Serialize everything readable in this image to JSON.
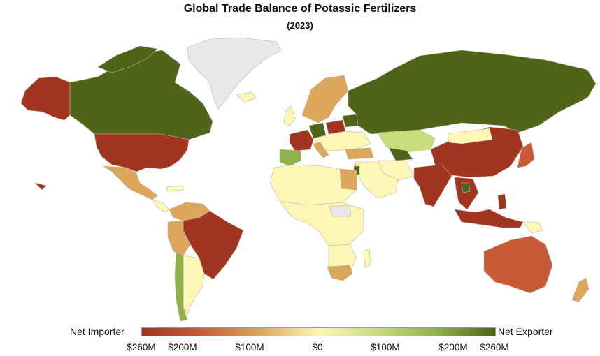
{
  "title": "Global Trade Balance of Potassic Fertilizers",
  "subtitle": "(2023)",
  "legend": {
    "left_label": "Net Importer",
    "right_label": "Net Exporter",
    "ticks": [
      "$260M",
      "$200M",
      "$100M",
      "$0",
      "$100M",
      "$200M",
      "$260M"
    ],
    "tick_values": [
      -260,
      -200,
      -100,
      0,
      100,
      200,
      260
    ],
    "colors": {
      "strong_import": "#a23422",
      "mid_import": "#c85a38",
      "light_import": "#dca65d",
      "neutral": "#fdf7b7",
      "light_export": "#c9dc7e",
      "mid_export": "#8fb14a",
      "strong_export": "#4e6519",
      "no_data": "#e8e8e8"
    }
  },
  "regions": [
    {
      "name": "Canada",
      "level": "strong_export"
    },
    {
      "name": "Russia",
      "level": "strong_export"
    },
    {
      "name": "Belarus",
      "level": "strong_export"
    },
    {
      "name": "Germany",
      "level": "strong_export"
    },
    {
      "name": "Israel",
      "level": "strong_export"
    },
    {
      "name": "Jordan",
      "level": "strong_export"
    },
    {
      "name": "Laos",
      "level": "strong_export"
    },
    {
      "name": "Turkmenistan",
      "level": "strong_export"
    },
    {
      "name": "Spain",
      "level": "mid_export"
    },
    {
      "name": "Chile",
      "level": "light_export"
    },
    {
      "name": "Kazakhstan",
      "level": "light_export"
    },
    {
      "name": "United States",
      "level": "strong_import"
    },
    {
      "name": "Brazil",
      "level": "strong_import"
    },
    {
      "name": "China",
      "level": "strong_import"
    },
    {
      "name": "India",
      "level": "strong_import"
    },
    {
      "name": "Indonesia",
      "level": "strong_import"
    },
    {
      "name": "Malaysia",
      "level": "strong_import"
    },
    {
      "name": "France",
      "level": "strong_import"
    },
    {
      "name": "Poland",
      "level": "strong_import"
    },
    {
      "name": "Thailand",
      "level": "strong_import"
    },
    {
      "name": "Australia",
      "level": "mid_import"
    },
    {
      "name": "Japan",
      "level": "mid_import"
    },
    {
      "name": "Mexico",
      "level": "light_import"
    },
    {
      "name": "South Africa",
      "level": "light_import"
    },
    {
      "name": "New Zealand",
      "level": "light_import"
    },
    {
      "name": "Turkey",
      "level": "light_import"
    },
    {
      "name": "Egypt",
      "level": "light_import"
    },
    {
      "name": "Colombia",
      "level": "light_import"
    },
    {
      "name": "Greenland",
      "level": "no_data"
    }
  ]
}
